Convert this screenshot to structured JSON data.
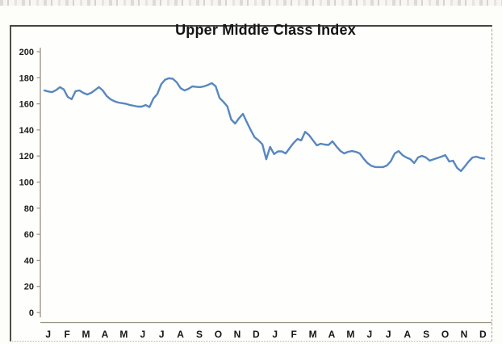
{
  "page": {
    "kind": "scanned chart page"
  },
  "chart_data": {
    "type": "line",
    "title": "Upper Middle Class Index",
    "xlabel": "",
    "ylabel": "",
    "ylim": [
      0,
      200
    ],
    "ytick_step": 20,
    "ytick_labels": [
      "0",
      "20",
      "40",
      "60",
      "80",
      "100",
      "120",
      "140",
      "160",
      "180",
      "200"
    ],
    "x_categories_months": [
      "J",
      "F",
      "M",
      "A",
      "M",
      "J",
      "J",
      "A",
      "S",
      "O",
      "N",
      "D",
      "J",
      "F",
      "M",
      "A",
      "M",
      "J",
      "J",
      "A",
      "S",
      "O",
      "N",
      "D"
    ],
    "grid": "off",
    "legend": "none",
    "line_color": "#4f81bd",
    "axis_color": "#97917f",
    "text_color": "#1c1c1c",
    "series": [
      {
        "name": "Upper Middle Class Index",
        "values": [
          170.3,
          169.5,
          169,
          170.5,
          172.8,
          171,
          165.3,
          163.5,
          169.7,
          170.3,
          168.4,
          167.2,
          168.4,
          170.5,
          172.8,
          170.3,
          166,
          163.5,
          162,
          161,
          160.5,
          160,
          159.1,
          158.5,
          157.9,
          157.9,
          159.1,
          157.5,
          164,
          167.5,
          175,
          178.5,
          179.6,
          179.2,
          176.5,
          172,
          170.3,
          171.5,
          173.4,
          173,
          172.8,
          173.4,
          174.5,
          175.9,
          173.5,
          164.5,
          161.5,
          158,
          148,
          144.9,
          149,
          152.3,
          146,
          140,
          134.4,
          132,
          129,
          117.5,
          127,
          121.5,
          123.5,
          123.5,
          122,
          126,
          130,
          133,
          132,
          138.6,
          136,
          132,
          128.2,
          129.4,
          128.8,
          128.5,
          131.3,
          127.5,
          124,
          122,
          123.2,
          123.8,
          123.2,
          122,
          118,
          114.6,
          112.5,
          111.5,
          111.5,
          111.5,
          112.7,
          116,
          122,
          123.8,
          120.7,
          118.9,
          117.6,
          114.6,
          118.9,
          120.1,
          118.9,
          116.5,
          117.5,
          118.5,
          119.5,
          120.7,
          115.8,
          116.4,
          111,
          108.5,
          112,
          115.8,
          118.9,
          119.5,
          118.5,
          118
        ]
      }
    ]
  }
}
